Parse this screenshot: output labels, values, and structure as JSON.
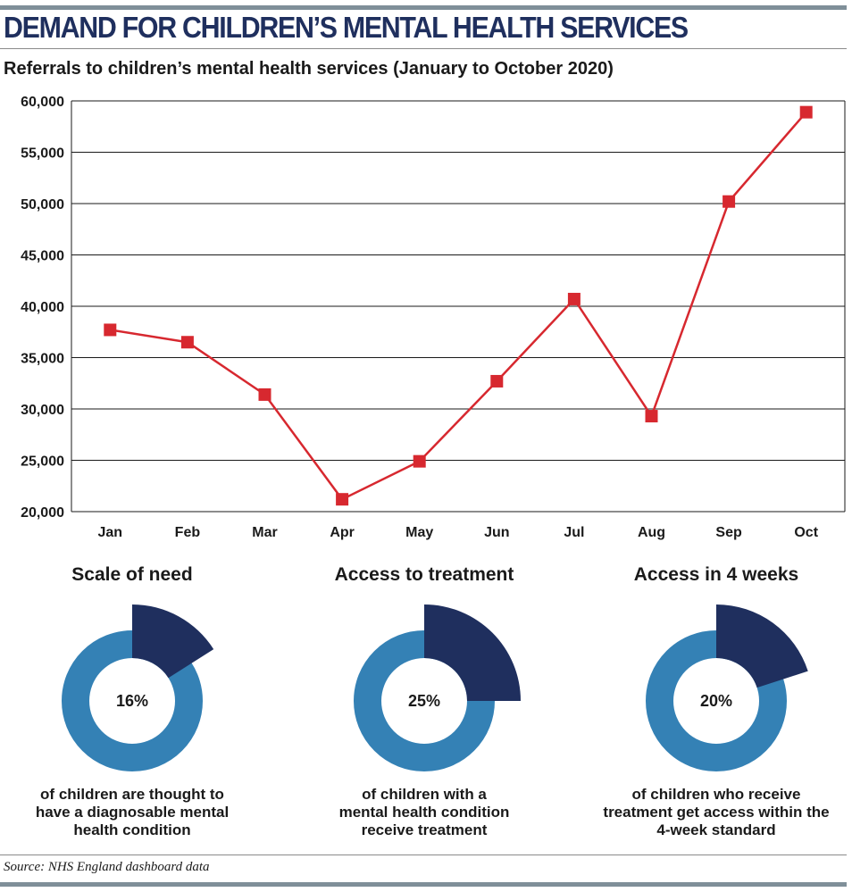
{
  "header": {
    "title": "DEMAND FOR CHILDREN’S MENTAL HEALTH SERVICES",
    "subtitle": "Referrals to children’s mental health services (January to October 2020)"
  },
  "chart_data": {
    "type": "line",
    "title": "Referrals to children’s mental health services (January to October 2020)",
    "categories": [
      "Jan",
      "Feb",
      "Mar",
      "Apr",
      "May",
      "Jun",
      "Jul",
      "Aug",
      "Sep",
      "Oct"
    ],
    "series": [
      {
        "values": [
          37700,
          36500,
          31400,
          21200,
          24900,
          32700,
          40700,
          29300,
          50200,
          58900
        ],
        "color": "#d7282f"
      }
    ],
    "ylim": [
      20000,
      60000
    ],
    "yticks": [
      20000,
      25000,
      30000,
      35000,
      40000,
      45000,
      50000,
      55000,
      60000
    ],
    "ytick_labels": [
      "20,000",
      "25,000",
      "30,000",
      "35,000",
      "40,000",
      "45,000",
      "50,000",
      "55,000",
      "60,000"
    ],
    "xlabel": "",
    "ylabel": "",
    "grid": "horizontal"
  },
  "donuts": [
    {
      "title": "Scale of need",
      "percent": 16,
      "label": "16%",
      "caption": [
        "of children are thought to",
        "have a diagnosable mental",
        "health condition"
      ]
    },
    {
      "title": "Access to treatment",
      "percent": 25,
      "label": "25%",
      "caption": [
        "of children with a",
        "mental health condition",
        "receive treatment"
      ]
    },
    {
      "title": "Access in 4 weeks",
      "percent": 20,
      "label": "20%",
      "caption": [
        "of children who receive",
        "treatment get access within the",
        "4-week standard"
      ]
    }
  ],
  "colors": {
    "ring": "#3481b5",
    "highlight": "#1f2f5e",
    "line": "#d7282f",
    "headline": "#1f2f5e"
  },
  "source": "Source: NHS England dashboard data"
}
